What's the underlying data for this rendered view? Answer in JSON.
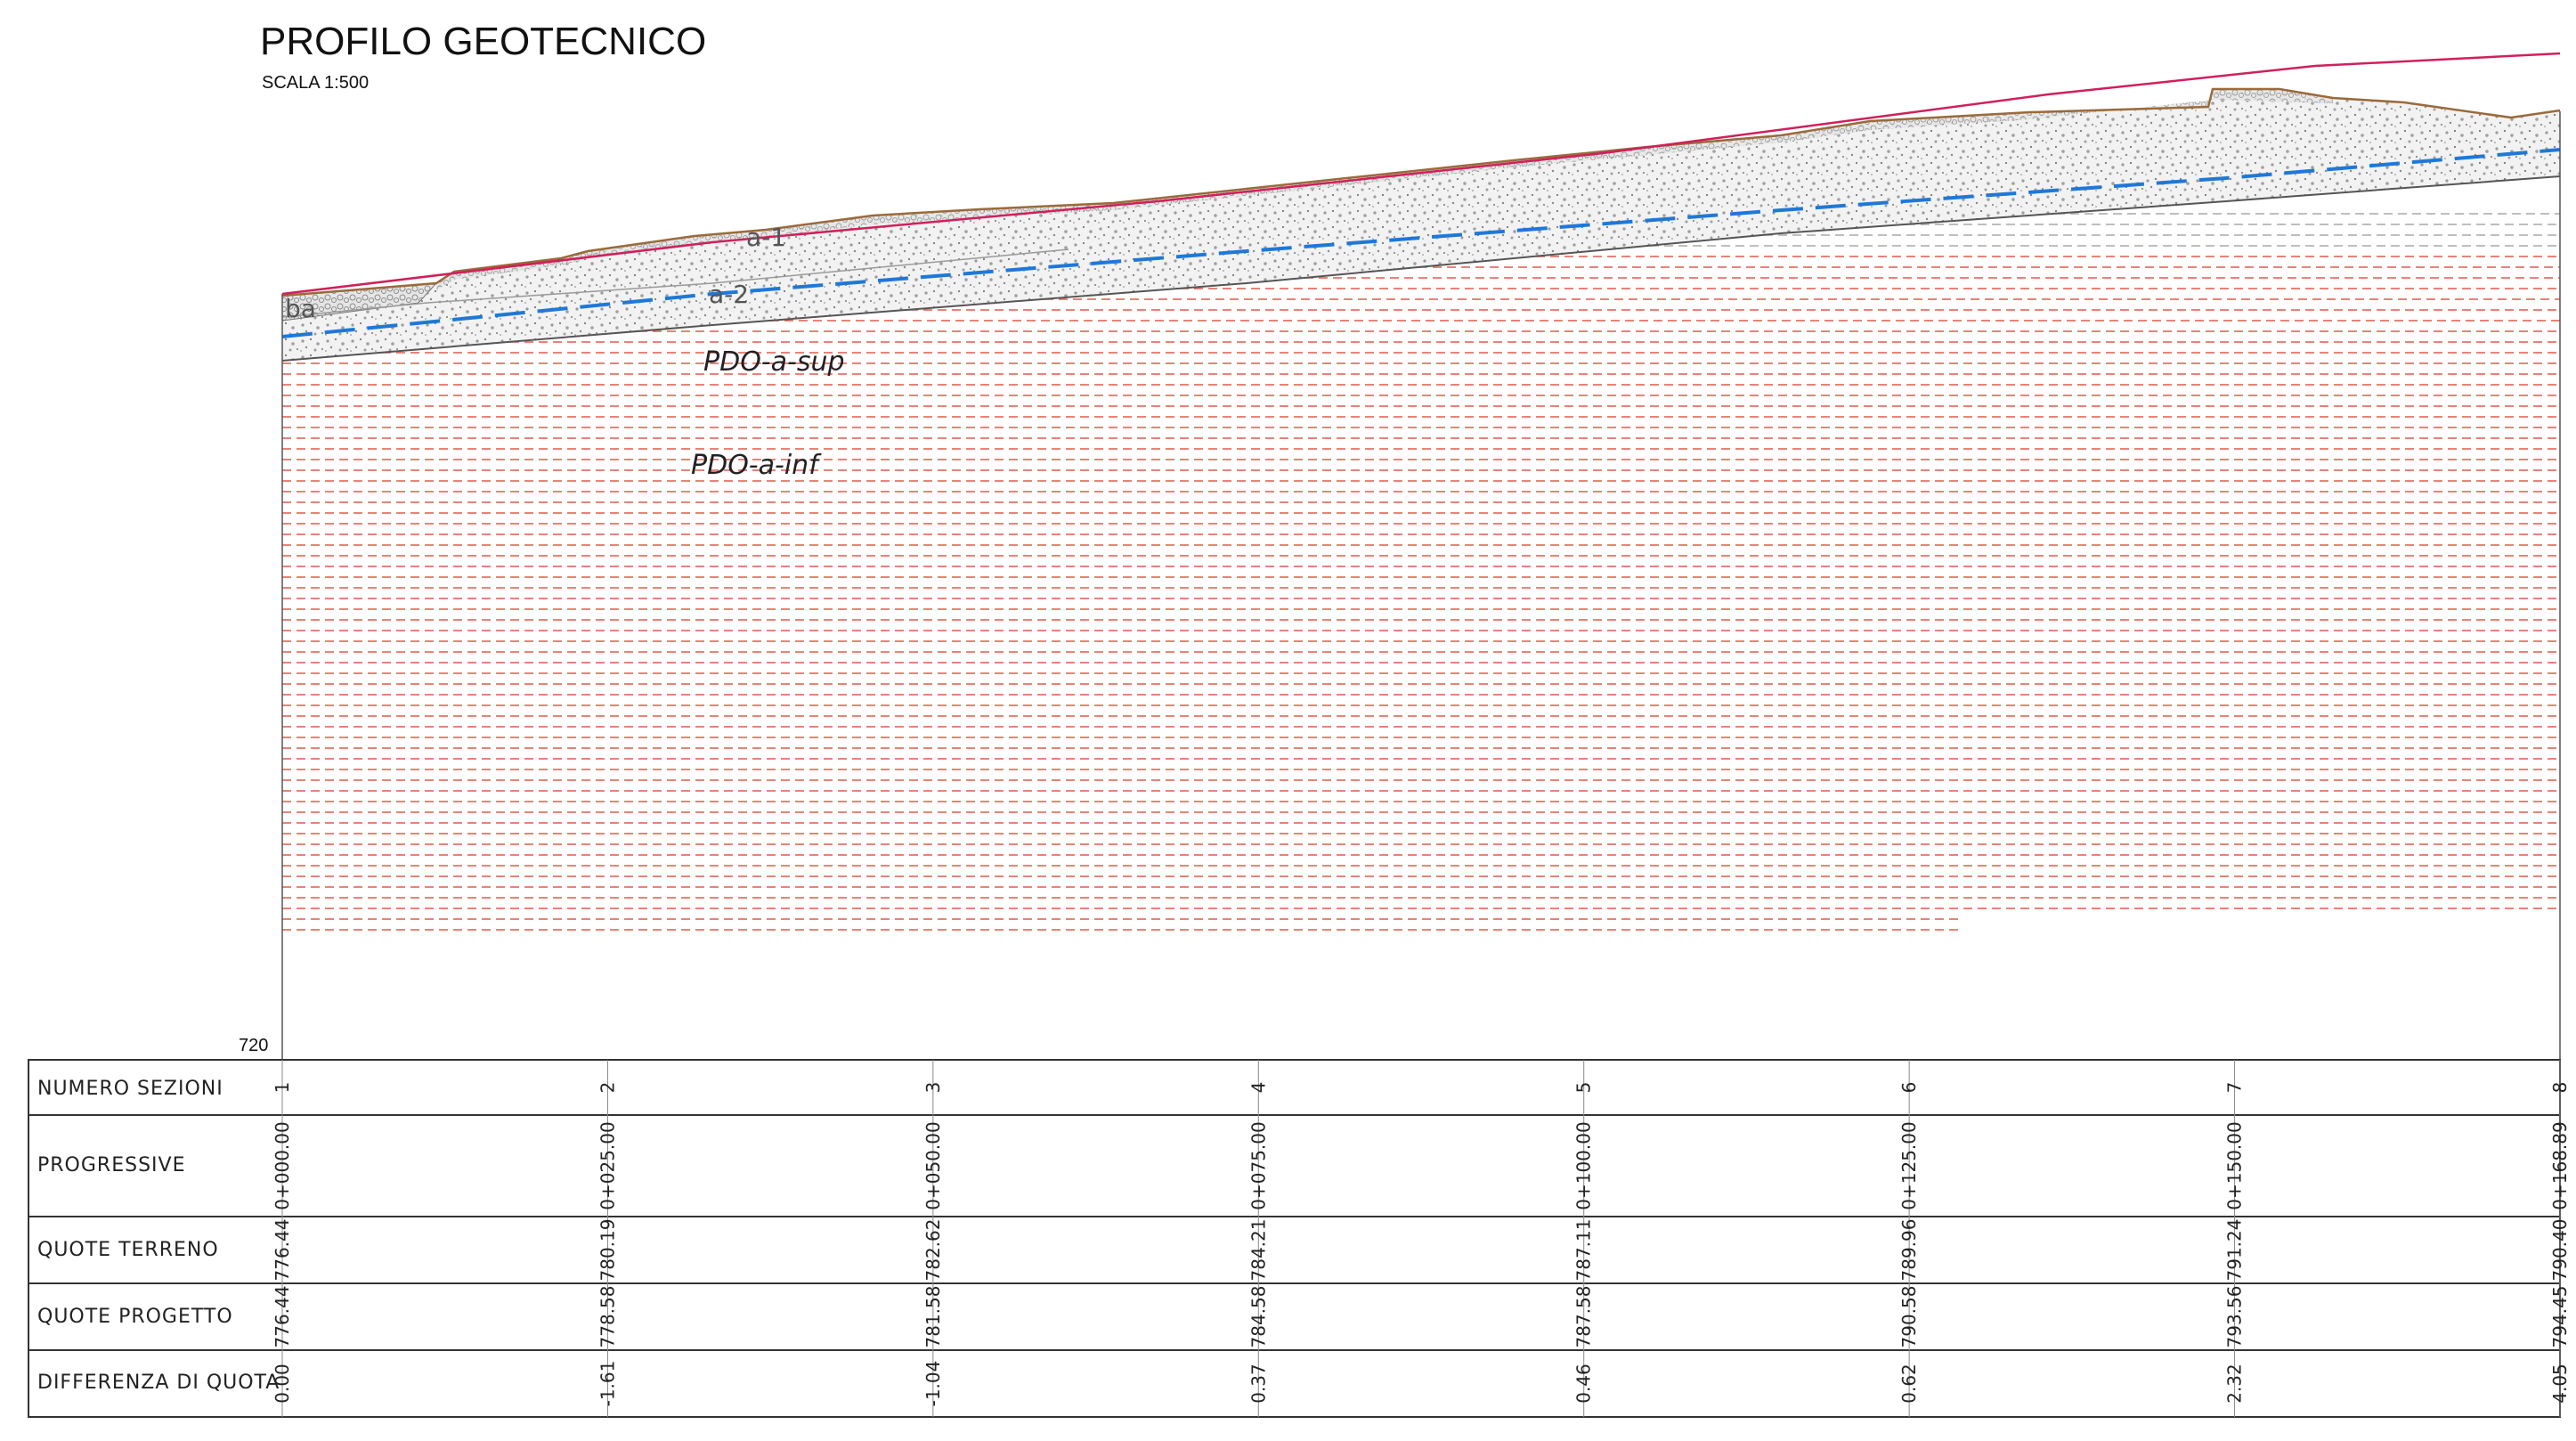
{
  "title": "PROFILO GEOTECNICO",
  "scale": "SCALA 1:500",
  "datum_label": "720",
  "layer_labels": {
    "upper_cover": "a-1",
    "lower_cover": "a-2",
    "left_cover": "ba",
    "substrate_upper": "PDO-a-sup",
    "substrate_lower": "PDO-a-inf"
  },
  "table": {
    "rows": [
      "NUMERO SEZIONI",
      "PROGRESSIVE",
      "QUOTE TERRENO",
      "QUOTE PROGETTO",
      "DIFFERENZA DI QUOTA"
    ],
    "sections": [
      {
        "num": "1",
        "progressive": "0+000.00",
        "terreno": "776.44",
        "progetto": "776.44",
        "differenza": "0.00"
      },
      {
        "num": "2",
        "progressive": "0+025.00",
        "terreno": "780.19",
        "progetto": "778.58",
        "differenza": "-1.61"
      },
      {
        "num": "3",
        "progressive": "0+050.00",
        "terreno": "782.62",
        "progetto": "781.58",
        "differenza": "-1.04"
      },
      {
        "num": "4",
        "progressive": "0+075.00",
        "terreno": "784.21",
        "progetto": "784.58",
        "differenza": "0.37"
      },
      {
        "num": "5",
        "progressive": "0+100.00",
        "terreno": "787.11",
        "progetto": "787.58",
        "differenza": "0.46"
      },
      {
        "num": "6",
        "progressive": "0+125.00",
        "terreno": "789.96",
        "progetto": "790.58",
        "differenza": "0.62"
      },
      {
        "num": "7",
        "progressive": "0+150.00",
        "terreno": "791.24",
        "progetto": "793.56",
        "differenza": "2.32"
      },
      {
        "num": "8",
        "progressive": "0+168.89",
        "terreno": "790.40",
        "progetto": "794.45",
        "differenza": "4.05"
      }
    ]
  },
  "colors": {
    "ground_line": "#9a6a3a",
    "project_line": "#d0205a",
    "water_table": "#1e78d8",
    "substrate_hatch": "#e05a4a",
    "upper_hatch": "#a8a8a8",
    "frame": "#333333"
  }
}
